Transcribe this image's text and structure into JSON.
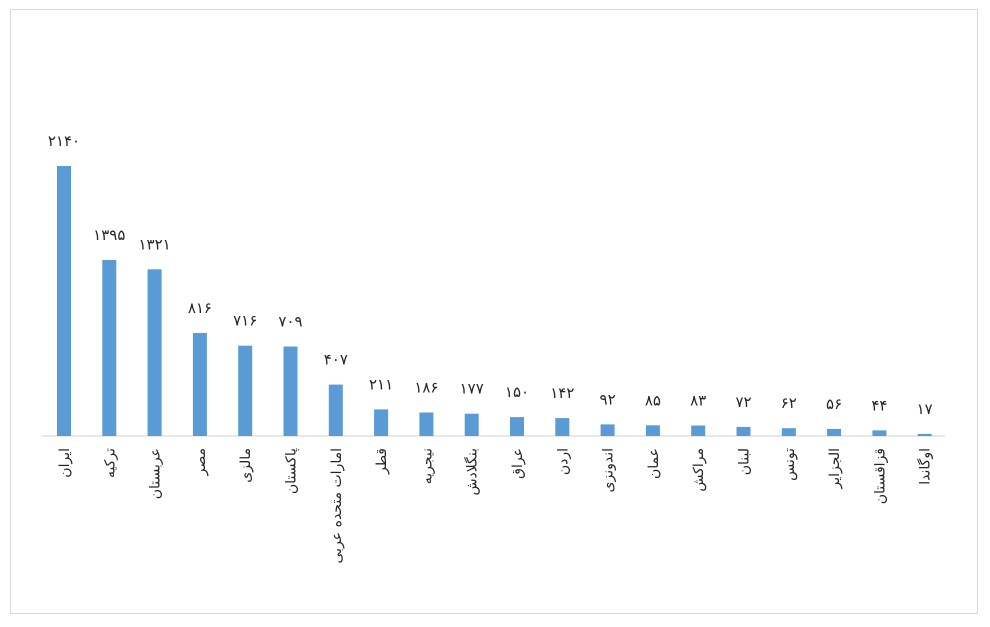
{
  "chart_data": {
    "type": "bar",
    "title": "",
    "xlabel": "",
    "ylabel": "",
    "bar_color": "#5b9bd5",
    "axis_color": "#d9d9d9",
    "categories": [
      "ایران",
      "ترکیه",
      "عربستان",
      "مصر",
      "مالزی",
      "پاکستان",
      "امارات متحده عربی",
      "قطر",
      "نیجریه",
      "بنگلادش",
      "عراق",
      "اردن",
      "اندونزی",
      "عمان",
      "مراکش",
      "لبنان",
      "تونس",
      "الجزایر",
      "قزاقستان",
      "اوگاندا"
    ],
    "values": [
      2140,
      1395,
      1321,
      816,
      716,
      709,
      407,
      211,
      186,
      177,
      150,
      142,
      92,
      85,
      83,
      72,
      62,
      56,
      44,
      17
    ],
    "value_labels": [
      "۲۱۴۰",
      "۱۳۹۵",
      "۱۳۲۱",
      "۸۱۶",
      "۷۱۶",
      "۷۰۹",
      "۴۰۷",
      "۲۱۱",
      "۱۸۶",
      "۱۷۷",
      "۱۵۰",
      "۱۴۲",
      "۹۲",
      "۸۵",
      "۸۳",
      "۷۲",
      "۶۲",
      "۵۶",
      "۴۴",
      "۱۷"
    ],
    "ylim": [
      0,
      2140
    ],
    "grid": false,
    "legend": "none"
  }
}
